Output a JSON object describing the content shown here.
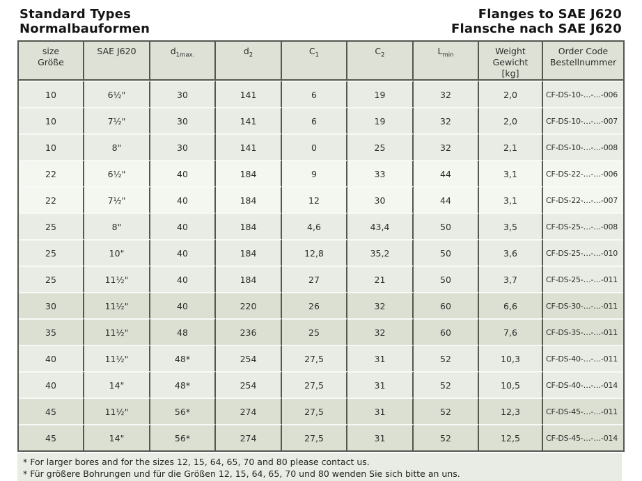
{
  "page": {
    "title_en": "Standard Types",
    "title_de": "Normalbauformen",
    "right_title_en": "Flanges to SAE J620",
    "right_title_de": "Flansche nach SAE J620"
  },
  "colors": {
    "header_bg": "#dee2d6",
    "row_light": "#e9ece4",
    "row_white": "#f4f6f0",
    "row_dark": "#dce0d3",
    "grid": "#54564f"
  },
  "table": {
    "columns": [
      {
        "id": "size",
        "lines": [
          {
            "t": "size"
          },
          {
            "t": "Größe"
          }
        ]
      },
      {
        "id": "sae",
        "lines": [
          {
            "t": "SAE J620"
          }
        ]
      },
      {
        "id": "d1max",
        "lines": [
          {
            "t": "d",
            "sub": "1max."
          }
        ]
      },
      {
        "id": "d2",
        "lines": [
          {
            "t": "d",
            "sub": "2"
          }
        ]
      },
      {
        "id": "c1",
        "lines": [
          {
            "t": "C",
            "sub": "1"
          }
        ]
      },
      {
        "id": "c2",
        "lines": [
          {
            "t": "C",
            "sub": "2"
          }
        ]
      },
      {
        "id": "lmin",
        "lines": [
          {
            "t": "L",
            "sub": "min"
          }
        ]
      },
      {
        "id": "weight",
        "lines": [
          {
            "t": "Weight"
          },
          {
            "t": "Gewicht"
          },
          {
            "t": "[kg]"
          }
        ]
      },
      {
        "id": "order",
        "lines": [
          {
            "t": "Order Code"
          },
          {
            "t": "Bestellnummer"
          }
        ]
      }
    ],
    "rows": [
      {
        "shade": "light",
        "cells": [
          "10",
          "6½\"",
          "30",
          "141",
          "6",
          "19",
          "32",
          "2,0",
          "CF-DS-10-…-…-006"
        ]
      },
      {
        "shade": "light",
        "cells": [
          "10",
          "7½\"",
          "30",
          "141",
          "6",
          "19",
          "32",
          "2,0",
          "CF-DS-10-…-…-007"
        ]
      },
      {
        "shade": "light",
        "cells": [
          "10",
          "8\"",
          "30",
          "141",
          "0",
          "25",
          "32",
          "2,1",
          "CF-DS-10-…-…-008"
        ]
      },
      {
        "shade": "white",
        "cells": [
          "22",
          "6½\"",
          "40",
          "184",
          "9",
          "33",
          "44",
          "3,1",
          "CF-DS-22-…-…-006"
        ]
      },
      {
        "shade": "white",
        "cells": [
          "22",
          "7½\"",
          "40",
          "184",
          "12",
          "30",
          "44",
          "3,1",
          "CF-DS-22-…-…-007"
        ]
      },
      {
        "shade": "light",
        "cells": [
          "25",
          "8\"",
          "40",
          "184",
          "4,6",
          "43,4",
          "50",
          "3,5",
          "CF-DS-25-…-…-008"
        ]
      },
      {
        "shade": "light",
        "cells": [
          "25",
          "10\"",
          "40",
          "184",
          "12,8",
          "35,2",
          "50",
          "3,6",
          "CF-DS-25-…-…-010"
        ]
      },
      {
        "shade": "light",
        "cells": [
          "25",
          "11½\"",
          "40",
          "184",
          "27",
          "21",
          "50",
          "3,7",
          "CF-DS-25-…-…-011"
        ]
      },
      {
        "shade": "dark",
        "cells": [
          "30",
          "11½\"",
          "40",
          "220",
          "26",
          "32",
          "60",
          "6,6",
          "CF-DS-30-…-…-011"
        ]
      },
      {
        "shade": "dark",
        "cells": [
          "35",
          "11½\"",
          "48",
          "236",
          "25",
          "32",
          "60",
          "7,6",
          "CF-DS-35-…-…-011"
        ]
      },
      {
        "shade": "light",
        "cells": [
          "40",
          "11½\"",
          "48*",
          "254",
          "27,5",
          "31",
          "52",
          "10,3",
          "CF-DS-40-…-…-011"
        ]
      },
      {
        "shade": "light",
        "cells": [
          "40",
          "14\"",
          "48*",
          "254",
          "27,5",
          "31",
          "52",
          "10,5",
          "CF-DS-40-…-…-014"
        ]
      },
      {
        "shade": "dark",
        "cells": [
          "45",
          "11½\"",
          "56*",
          "274",
          "27,5",
          "31",
          "52",
          "12,3",
          "CF-DS-45-…-…-011"
        ]
      },
      {
        "shade": "dark",
        "cells": [
          "45",
          "14\"",
          "56*",
          "274",
          "27,5",
          "31",
          "52",
          "12,5",
          "CF-DS-45-…-…-014"
        ]
      }
    ]
  },
  "footnotes": [
    "* For larger bores and for the sizes 12, 15, 64, 65, 70 and 80 please contact us.",
    "* Für größere Bohrungen und für die Größen 12, 15, 64, 65, 70 und 80 wenden Sie sich bitte an uns."
  ]
}
